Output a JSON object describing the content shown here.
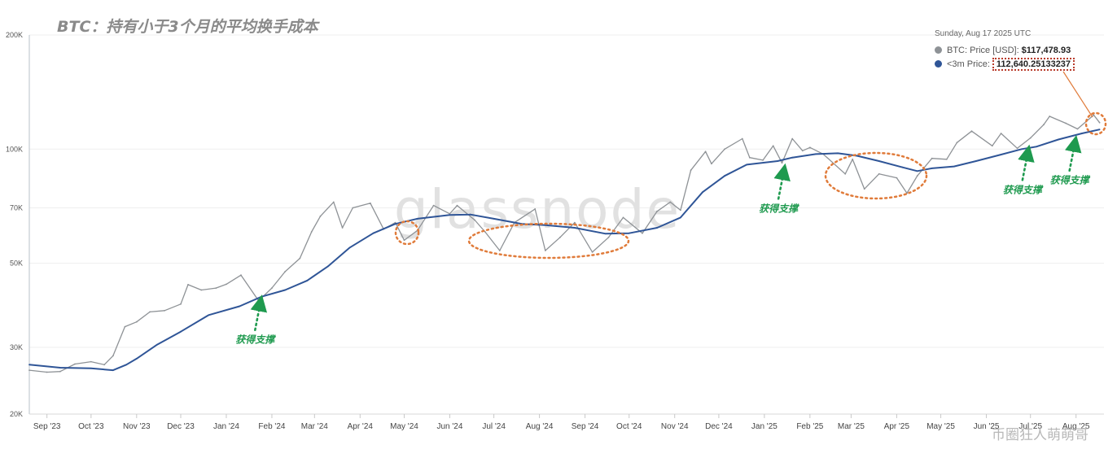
{
  "title": "BTC：持有小于3个月的平均换手成本",
  "watermark_logo": "glassnode",
  "watermark_corner": "币圈狂人萌萌哥",
  "tooltip": {
    "date": "Sunday, Aug 17 2025 UTC",
    "rows": [
      {
        "label": "BTC: Price [USD]:",
        "value": "$117,478.93",
        "color": "#8e9296"
      },
      {
        "label": "<3m Price:",
        "value": "112,640.25133237",
        "color": "#2f5597"
      }
    ]
  },
  "annotations": [
    {
      "text": "获得支撑",
      "date": "2024-01-25",
      "value": 41000,
      "color": "#1f9a4f"
    },
    {
      "text": "获得支撑",
      "date": "2025-01-15",
      "value": 91000,
      "color": "#1f9a4f"
    },
    {
      "text": "获得支撑",
      "date": "2025-06-30",
      "value": 102000,
      "color": "#1f9a4f"
    },
    {
      "text": "获得支撑",
      "date": "2025-08-01",
      "value": 108000,
      "color": "#1f9a4f"
    }
  ],
  "chart_data": {
    "type": "line",
    "y_scale": "log",
    "ylim": [
      20000,
      200000
    ],
    "y_ticks": [
      20000,
      30000,
      50000,
      70000,
      100000,
      200000
    ],
    "y_tick_labels": [
      "20K",
      "30K",
      "50K",
      "70K",
      "100K",
      "200K"
    ],
    "x_ticks": [
      "2023-09-01",
      "2023-10-01",
      "2023-11-01",
      "2023-12-01",
      "2024-01-01",
      "2024-02-01",
      "2024-03-01",
      "2024-04-01",
      "2024-05-01",
      "2024-06-01",
      "2024-07-01",
      "2024-08-01",
      "2024-09-01",
      "2024-10-01",
      "2024-11-01",
      "2024-12-01",
      "2025-01-01",
      "2025-02-01",
      "2025-03-01",
      "2025-04-01",
      "2025-05-01",
      "2025-06-01",
      "2025-07-01",
      "2025-08-01"
    ],
    "x_tick_labels": [
      "Sep '23",
      "Oct '23",
      "Nov '23",
      "Dec '23",
      "Jan '24",
      "Feb '24",
      "Mar '24",
      "Apr '24",
      "May '24",
      "Jun '24",
      "Jul '24",
      "Aug '24",
      "Sep '24",
      "Oct '24",
      "Nov '24",
      "Dec '24",
      "Jan '25",
      "Feb '25",
      "Mar '25",
      "Apr '25",
      "May '25",
      "Jun '25",
      "Jul '25",
      "Aug '25"
    ],
    "x_start": "2023-08-20",
    "x_end": "2025-08-20",
    "grid": true,
    "series": [
      {
        "name": "BTC: Price [USD]",
        "color": "#8e9296",
        "points": [
          [
            "2023-08-20",
            26100
          ],
          [
            "2023-09-01",
            25800
          ],
          [
            "2023-09-10",
            25900
          ],
          [
            "2023-09-20",
            27100
          ],
          [
            "2023-10-01",
            27500
          ],
          [
            "2023-10-10",
            27000
          ],
          [
            "2023-10-16",
            28500
          ],
          [
            "2023-10-24",
            34000
          ],
          [
            "2023-11-01",
            35000
          ],
          [
            "2023-11-10",
            37200
          ],
          [
            "2023-11-20",
            37500
          ],
          [
            "2023-12-01",
            39000
          ],
          [
            "2023-12-06",
            43900
          ],
          [
            "2023-12-15",
            42500
          ],
          [
            "2023-12-25",
            43000
          ],
          [
            "2024-01-01",
            44000
          ],
          [
            "2024-01-11",
            46500
          ],
          [
            "2024-01-23",
            39800
          ],
          [
            "2024-02-01",
            43000
          ],
          [
            "2024-02-10",
            47500
          ],
          [
            "2024-02-20",
            51500
          ],
          [
            "2024-02-28",
            60500
          ],
          [
            "2024-03-05",
            66500
          ],
          [
            "2024-03-14",
            72500
          ],
          [
            "2024-03-20",
            62000
          ],
          [
            "2024-03-27",
            70000
          ],
          [
            "2024-04-08",
            72000
          ],
          [
            "2024-04-17",
            61500
          ],
          [
            "2024-04-25",
            64000
          ],
          [
            "2024-05-01",
            57500
          ],
          [
            "2024-05-10",
            61000
          ],
          [
            "2024-05-21",
            71000
          ],
          [
            "2024-06-01",
            67500
          ],
          [
            "2024-06-06",
            71000
          ],
          [
            "2024-06-18",
            65000
          ],
          [
            "2024-06-25",
            60500
          ],
          [
            "2024-07-05",
            54000
          ],
          [
            "2024-07-15",
            64000
          ],
          [
            "2024-07-29",
            69500
          ],
          [
            "2024-08-05",
            54000
          ],
          [
            "2024-08-15",
            58500
          ],
          [
            "2024-08-25",
            64000
          ],
          [
            "2024-09-06",
            53500
          ],
          [
            "2024-09-17",
            58500
          ],
          [
            "2024-09-27",
            66000
          ],
          [
            "2024-10-10",
            60000
          ],
          [
            "2024-10-20",
            68500
          ],
          [
            "2024-10-29",
            72500
          ],
          [
            "2024-11-05",
            69000
          ],
          [
            "2024-11-12",
            88000
          ],
          [
            "2024-11-22",
            98500
          ],
          [
            "2024-11-26",
            91500
          ],
          [
            "2024-12-05",
            100000
          ],
          [
            "2024-12-17",
            106500
          ],
          [
            "2024-12-22",
            95000
          ],
          [
            "2024-12-31",
            93500
          ],
          [
            "2025-01-07",
            102000
          ],
          [
            "2025-01-13",
            92000
          ],
          [
            "2025-01-20",
            106500
          ],
          [
            "2025-01-27",
            99000
          ],
          [
            "2025-02-01",
            101000
          ],
          [
            "2025-02-10",
            97000
          ],
          [
            "2025-02-25",
            86000
          ],
          [
            "2025-03-02",
            94000
          ],
          [
            "2025-03-10",
            78500
          ],
          [
            "2025-03-20",
            86000
          ],
          [
            "2025-04-01",
            84000
          ],
          [
            "2025-04-08",
            76500
          ],
          [
            "2025-04-15",
            85000
          ],
          [
            "2025-04-25",
            94500
          ],
          [
            "2025-05-05",
            94000
          ],
          [
            "2025-05-12",
            104000
          ],
          [
            "2025-05-22",
            111500
          ],
          [
            "2025-06-05",
            102000
          ],
          [
            "2025-06-11",
            110000
          ],
          [
            "2025-06-22",
            100500
          ],
          [
            "2025-07-01",
            107000
          ],
          [
            "2025-07-10",
            116000
          ],
          [
            "2025-07-14",
            122000
          ],
          [
            "2025-07-25",
            117000
          ],
          [
            "2025-08-02",
            113000
          ],
          [
            "2025-08-13",
            123000
          ],
          [
            "2025-08-17",
            117479
          ]
        ]
      },
      {
        "name": "<3m Price",
        "color": "#2f5597",
        "points": [
          [
            "2023-08-20",
            27000
          ],
          [
            "2023-09-10",
            26500
          ],
          [
            "2023-10-01",
            26400
          ],
          [
            "2023-10-16",
            26100
          ],
          [
            "2023-10-25",
            27000
          ],
          [
            "2023-11-01",
            28000
          ],
          [
            "2023-11-15",
            30500
          ],
          [
            "2023-12-01",
            33000
          ],
          [
            "2023-12-20",
            36500
          ],
          [
            "2024-01-10",
            38500
          ],
          [
            "2024-01-25",
            40800
          ],
          [
            "2024-02-10",
            42500
          ],
          [
            "2024-02-25",
            45000
          ],
          [
            "2024-03-10",
            49000
          ],
          [
            "2024-03-25",
            55000
          ],
          [
            "2024-04-10",
            60000
          ],
          [
            "2024-04-25",
            63500
          ],
          [
            "2024-05-10",
            65500
          ],
          [
            "2024-06-01",
            67000
          ],
          [
            "2024-06-15",
            67200
          ],
          [
            "2024-07-01",
            65500
          ],
          [
            "2024-07-20",
            63500
          ],
          [
            "2024-08-05",
            63000
          ],
          [
            "2024-08-25",
            62000
          ],
          [
            "2024-09-15",
            59800
          ],
          [
            "2024-10-01",
            60000
          ],
          [
            "2024-10-20",
            62000
          ],
          [
            "2024-11-05",
            66000
          ],
          [
            "2024-11-20",
            77000
          ],
          [
            "2024-12-05",
            85000
          ],
          [
            "2024-12-20",
            91000
          ],
          [
            "2025-01-10",
            93000
          ],
          [
            "2025-01-20",
            95000
          ],
          [
            "2025-02-05",
            97000
          ],
          [
            "2025-02-20",
            97500
          ],
          [
            "2025-03-05",
            96000
          ],
          [
            "2025-03-20",
            93000
          ],
          [
            "2025-04-05",
            89500
          ],
          [
            "2025-04-15",
            87500
          ],
          [
            "2025-04-25",
            89000
          ],
          [
            "2025-05-10",
            90000
          ],
          [
            "2025-05-25",
            93000
          ],
          [
            "2025-06-10",
            96500
          ],
          [
            "2025-06-25",
            100000
          ],
          [
            "2025-07-05",
            101500
          ],
          [
            "2025-07-20",
            106000
          ],
          [
            "2025-08-05",
            110000
          ],
          [
            "2025-08-17",
            112640
          ]
        ]
      }
    ]
  }
}
